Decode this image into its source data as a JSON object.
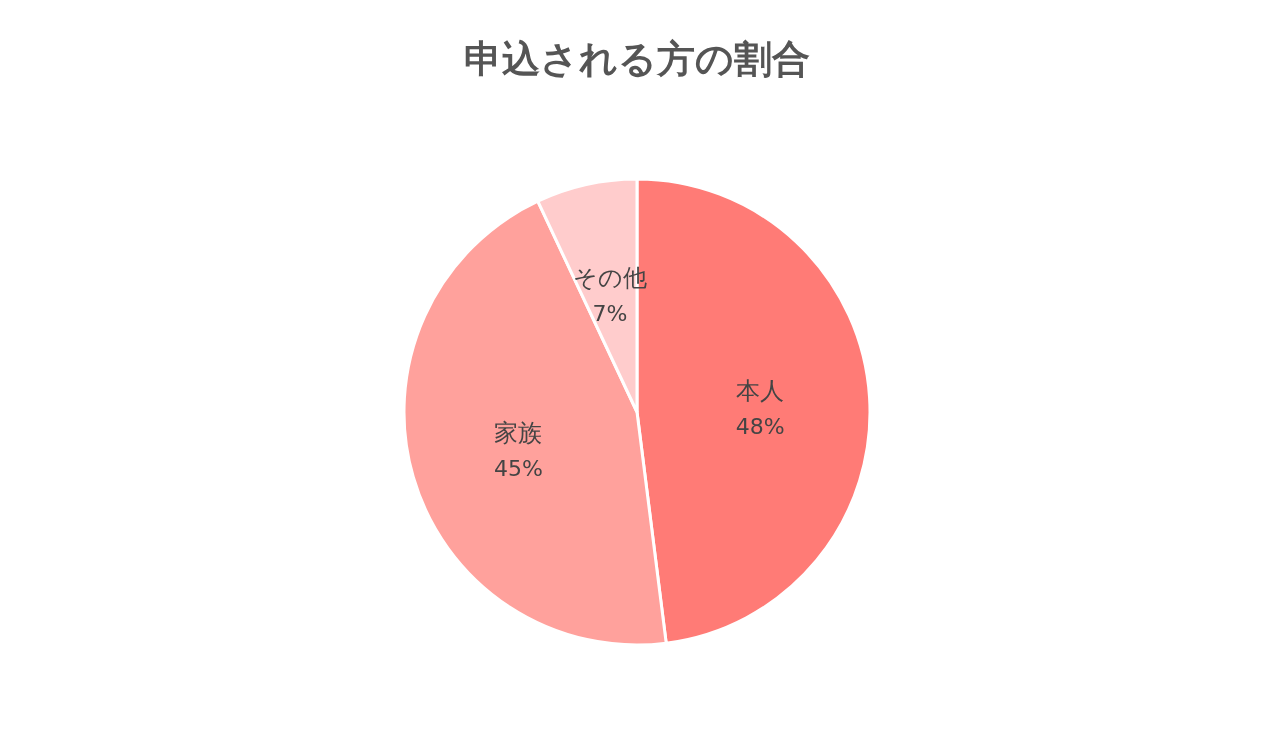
{
  "chart_data": {
    "type": "pie",
    "title": "申込される方の割合",
    "categories": [
      "本人",
      "家族",
      "その他"
    ],
    "values": [
      48,
      45,
      7
    ],
    "value_labels": [
      "48%",
      "45%",
      "7%"
    ],
    "colors": [
      "#ff7b76",
      "#ffa19c",
      "#ffcccc"
    ]
  }
}
